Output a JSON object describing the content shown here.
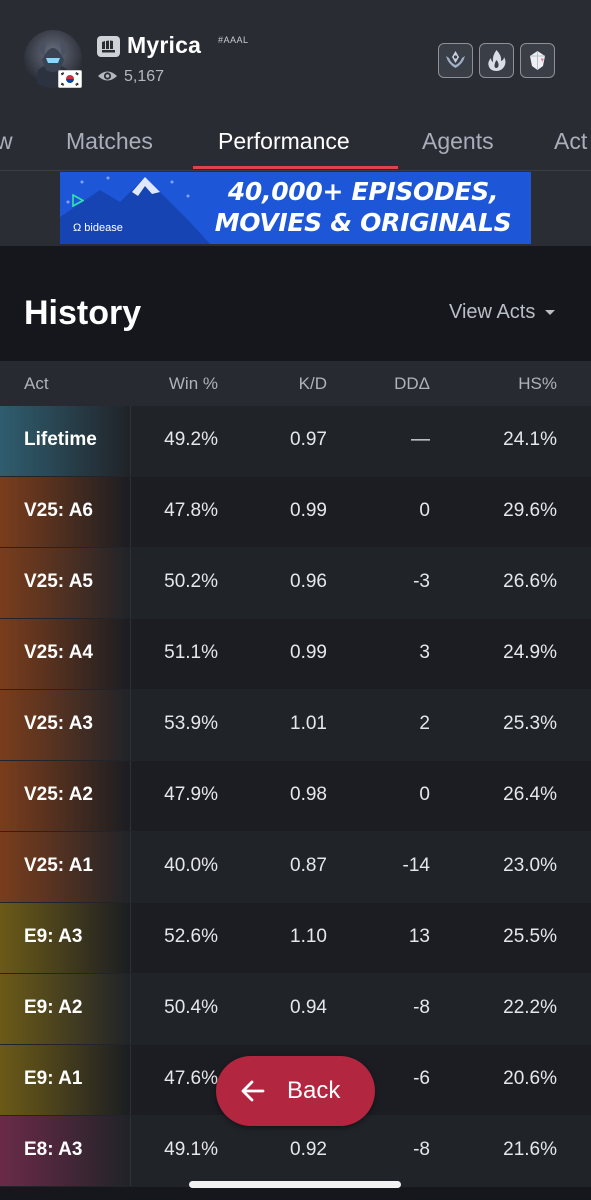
{
  "profile": {
    "name": "Myrica",
    "tag": "#AAAL",
    "views": "5,167",
    "flag": "south-korea-flag",
    "badges": [
      "rank-badge-icon",
      "fire-badge-icon",
      "gem-badge-icon"
    ]
  },
  "tabs": [
    {
      "label": "w"
    },
    {
      "label": "Matches"
    },
    {
      "label": "Performance"
    },
    {
      "label": "Agents"
    },
    {
      "label": "Act"
    }
  ],
  "active_tab": "Performance",
  "ad": {
    "line1": "40,000+ EPISODES,",
    "line2": "MOVIES & ORIGINALS",
    "brand": "bidease"
  },
  "history": {
    "title": "History",
    "view_acts": "View Acts",
    "columns": [
      "Act",
      "Win %",
      "K/D",
      "DDΔ",
      "HS%"
    ],
    "rows": [
      {
        "act": "Lifetime",
        "win": "49.2%",
        "kd": "0.97",
        "dd": "—",
        "hs": "24.1%"
      },
      {
        "act": "V25: A6",
        "win": "47.8%",
        "kd": "0.99",
        "dd": "0",
        "hs": "29.6%"
      },
      {
        "act": "V25: A5",
        "win": "50.2%",
        "kd": "0.96",
        "dd": "-3",
        "hs": "26.6%"
      },
      {
        "act": "V25: A4",
        "win": "51.1%",
        "kd": "0.99",
        "dd": "3",
        "hs": "24.9%"
      },
      {
        "act": "V25: A3",
        "win": "53.9%",
        "kd": "1.01",
        "dd": "2",
        "hs": "25.3%"
      },
      {
        "act": "V25: A2",
        "win": "47.9%",
        "kd": "0.98",
        "dd": "0",
        "hs": "26.4%"
      },
      {
        "act": "V25: A1",
        "win": "40.0%",
        "kd": "0.87",
        "dd": "-14",
        "hs": "23.0%"
      },
      {
        "act": "E9: A3",
        "win": "52.6%",
        "kd": "1.10",
        "dd": "13",
        "hs": "25.5%"
      },
      {
        "act": "E9: A2",
        "win": "50.4%",
        "kd": "0.94",
        "dd": "-8",
        "hs": "22.2%"
      },
      {
        "act": "E9: A1",
        "win": "47.6%",
        "kd": "",
        "dd": "-6",
        "hs": "20.6%"
      },
      {
        "act": "E8: A3",
        "win": "49.1%",
        "kd": "0.92",
        "dd": "-8",
        "hs": "21.6%"
      }
    ]
  },
  "act_colors": {
    "Lifetime": "#2f5d6f",
    "V25": "#7a3d1c",
    "E9": "#6b5a17",
    "E8": "#6a2a48"
  },
  "back_button": {
    "label": "Back"
  }
}
